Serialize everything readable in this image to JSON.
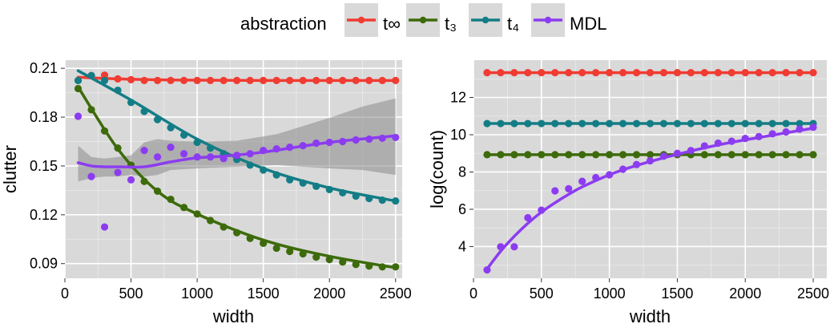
{
  "legend": {
    "title": "abstraction",
    "items": [
      {
        "label": "t∞",
        "color": "#f03c32"
      },
      {
        "label": "t₃",
        "color": "#3d6b0b"
      },
      {
        "label": "t₄",
        "color": "#137d86"
      },
      {
        "label": "MDL",
        "color": "#8c3cf0"
      }
    ]
  },
  "chart_data": [
    {
      "type": "scatter",
      "xlabel": "width",
      "ylabel": "clutter",
      "xlim": [
        0,
        2550
      ],
      "ylim": [
        0.081,
        0.215
      ],
      "xticks": [
        0,
        500,
        1000,
        1500,
        2000,
        2500
      ],
      "xtick_labels": [
        "0",
        "500",
        "1000",
        "1500",
        "2000",
        "2500"
      ],
      "yticks": [
        0.09,
        0.12,
        0.15,
        0.18,
        0.21
      ],
      "ytick_labels": [
        "0.09",
        "0.12",
        "0.15",
        "0.18",
        "0.21"
      ],
      "grid": true,
      "x": [
        100,
        200,
        300,
        400,
        500,
        600,
        700,
        800,
        900,
        1000,
        1100,
        1200,
        1300,
        1400,
        1500,
        1600,
        1700,
        1800,
        1900,
        2000,
        2100,
        2200,
        2300,
        2400,
        2500
      ],
      "series": [
        {
          "name": "t∞",
          "color": "#f03c32",
          "points": [
            0.2025,
            0.2055,
            0.2058,
            0.2035,
            0.203,
            0.2025,
            0.2025,
            0.2025,
            0.2025,
            0.2025,
            0.2025,
            0.2025,
            0.2025,
            0.2025,
            0.2025,
            0.2025,
            0.2025,
            0.2025,
            0.2025,
            0.2025,
            0.2025,
            0.2025,
            0.2025,
            0.2025,
            0.2025
          ],
          "fit": [
            [
              100,
              0.2045
            ],
            [
              400,
              0.2035
            ],
            [
              800,
              0.2028
            ],
            [
              1500,
              0.2025
            ],
            [
              2500,
              0.2025
            ]
          ]
        },
        {
          "name": "t₃",
          "color": "#3d6b0b",
          "points": [
            0.1975,
            0.1845,
            0.1715,
            0.161,
            0.1505,
            0.1405,
            0.1345,
            0.1295,
            0.1245,
            0.1205,
            0.1165,
            0.1125,
            0.109,
            0.1055,
            0.1025,
            0.0995,
            0.0975,
            0.096,
            0.094,
            0.0925,
            0.091,
            0.0895,
            0.0885,
            0.088,
            0.088
          ],
          "fit": [
            [
              100,
              0.1985
            ],
            [
              400,
              0.1605
            ],
            [
              700,
              0.1345
            ],
            [
              1000,
              0.1205
            ],
            [
              1500,
              0.1045
            ],
            [
              2000,
              0.0945
            ],
            [
              2500,
              0.0875
            ]
          ]
        },
        {
          "name": "t₄",
          "color": "#137d86",
          "points": [
            0.2025,
            0.2055,
            0.2025,
            0.1965,
            0.189,
            0.1835,
            0.1785,
            0.1735,
            0.169,
            0.1645,
            0.161,
            0.1575,
            0.154,
            0.1505,
            0.1475,
            0.1445,
            0.1415,
            0.1395,
            0.1375,
            0.1355,
            0.1335,
            0.1315,
            0.13,
            0.129,
            0.1285
          ],
          "fit": [
            [
              100,
              0.2085
            ],
            [
              500,
              0.1905
            ],
            [
              1000,
              0.1665
            ],
            [
              1500,
              0.1485
            ],
            [
              2000,
              0.1365
            ],
            [
              2500,
              0.1285
            ]
          ]
        },
        {
          "name": "MDL",
          "color": "#8c3cf0",
          "points": [
            0.1805,
            0.1435,
            0.1125,
            0.146,
            0.1415,
            0.1595,
            0.1555,
            0.1615,
            0.1575,
            0.1555,
            0.1555,
            0.1545,
            0.1565,
            0.1575,
            0.1595,
            0.1605,
            0.1615,
            0.1625,
            0.164,
            0.1645,
            0.165,
            0.166,
            0.1665,
            0.167,
            0.1675
          ],
          "fit": [
            [
              100,
              0.152
            ],
            [
              200,
              0.15
            ],
            [
              300,
              0.1495
            ],
            [
              400,
              0.1495
            ],
            [
              600,
              0.1495
            ],
            [
              800,
              0.1525
            ],
            [
              1000,
              0.155
            ],
            [
              1200,
              0.156
            ],
            [
              1500,
              0.1585
            ],
            [
              2000,
              0.1645
            ],
            [
              2500,
              0.1685
            ]
          ],
          "ci_upper": [
            0.1625,
            0.1555,
            0.1545,
            0.1555,
            0.1565,
            0.1645,
            0.1665,
            0.1655,
            0.165,
            0.1655,
            0.1695,
            0.1745,
            0.1795,
            0.1865,
            0.1915
          ],
          "ci_lower": [
            0.1405,
            0.1425,
            0.1435,
            0.1435,
            0.1445,
            0.1435,
            0.1445,
            0.1475,
            0.1485,
            0.1495,
            0.1505,
            0.1495,
            0.1485,
            0.1475,
            0.1445
          ],
          "ci_x": [
            100,
            200,
            300,
            400,
            500,
            600,
            700,
            800,
            1000,
            1300,
            1600,
            1800,
            2000,
            2250,
            2500
          ]
        }
      ]
    },
    {
      "type": "scatter",
      "xlabel": "width",
      "ylabel": "log(count)",
      "xlim": [
        0,
        2600
      ],
      "ylim": [
        2.3,
        14
      ],
      "xticks": [
        0,
        500,
        1000,
        1500,
        2000,
        2500
      ],
      "xtick_labels": [
        "0",
        "500",
        "1000",
        "1500",
        "2000",
        "2500"
      ],
      "yticks": [
        4,
        6,
        8,
        10,
        12
      ],
      "ytick_labels": [
        "4",
        "6",
        "8",
        "10",
        "12"
      ],
      "grid": true,
      "x": [
        100,
        200,
        300,
        400,
        500,
        600,
        700,
        800,
        900,
        1000,
        1100,
        1200,
        1300,
        1400,
        1500,
        1600,
        1700,
        1800,
        1900,
        2000,
        2100,
        2200,
        2300,
        2400,
        2500
      ],
      "series": [
        {
          "name": "t∞",
          "color": "#f03c32",
          "points": [
            13.33,
            13.33,
            13.33,
            13.33,
            13.33,
            13.33,
            13.33,
            13.33,
            13.33,
            13.33,
            13.33,
            13.33,
            13.33,
            13.33,
            13.33,
            13.33,
            13.33,
            13.33,
            13.33,
            13.33,
            13.33,
            13.33,
            13.33,
            13.33,
            13.33
          ]
        },
        {
          "name": "t₃",
          "color": "#3d6b0b",
          "points": [
            8.93,
            8.93,
            8.93,
            8.93,
            8.93,
            8.93,
            8.93,
            8.93,
            8.93,
            8.93,
            8.93,
            8.93,
            8.93,
            8.93,
            8.93,
            8.93,
            8.93,
            8.93,
            8.93,
            8.93,
            8.93,
            8.93,
            8.93,
            8.93,
            8.93
          ]
        },
        {
          "name": "t₄",
          "color": "#137d86",
          "points": [
            10.6,
            10.6,
            10.6,
            10.6,
            10.6,
            10.6,
            10.6,
            10.6,
            10.6,
            10.6,
            10.6,
            10.6,
            10.6,
            10.6,
            10.6,
            10.6,
            10.6,
            10.6,
            10.6,
            10.6,
            10.6,
            10.6,
            10.6,
            10.6,
            10.6
          ]
        },
        {
          "name": "MDL",
          "color": "#8c3cf0",
          "points": [
            2.75,
            3.99,
            3.99,
            5.55,
            5.95,
            6.99,
            7.1,
            7.5,
            7.7,
            7.85,
            8.15,
            8.4,
            8.6,
            8.85,
            9.0,
            9.15,
            9.4,
            9.55,
            9.65,
            9.8,
            9.9,
            10.05,
            10.15,
            10.3,
            10.4
          ],
          "fit": [
            [
              100,
              2.8
            ],
            [
              200,
              3.75
            ],
            [
              300,
              4.55
            ],
            [
              400,
              5.25
            ],
            [
              500,
              5.85
            ],
            [
              600,
              6.35
            ],
            [
              700,
              6.8
            ],
            [
              800,
              7.2
            ],
            [
              1000,
              7.85
            ],
            [
              1200,
              8.35
            ],
            [
              1500,
              8.95
            ],
            [
              1800,
              9.45
            ],
            [
              2100,
              9.85
            ],
            [
              2500,
              10.35
            ]
          ]
        }
      ]
    }
  ]
}
